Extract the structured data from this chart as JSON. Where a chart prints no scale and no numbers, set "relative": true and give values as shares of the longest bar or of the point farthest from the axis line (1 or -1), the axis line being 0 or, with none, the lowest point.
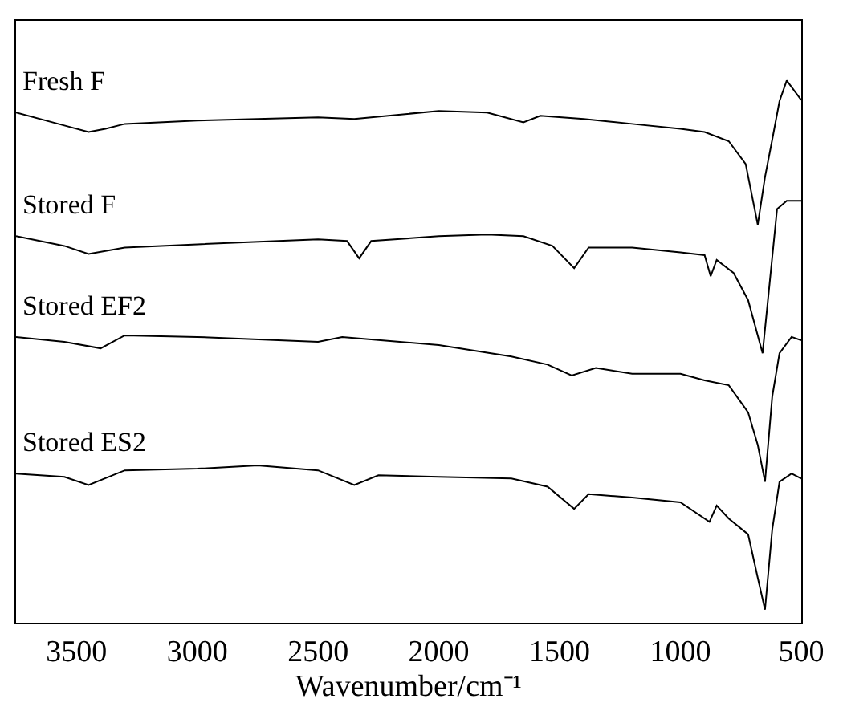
{
  "chart_data": {
    "type": "line",
    "relative": true,
    "xlabel": "Wavenumber/cm⁻¹",
    "xlim": [
      3750,
      500
    ],
    "xticks": [
      3500,
      3000,
      2500,
      2000,
      1500,
      1000,
      500
    ],
    "legend": false,
    "tick_labels": "x",
    "series": [
      {
        "name": "Fresh F",
        "color": "#000000",
        "x": [
          3750,
          3550,
          3450,
          3380,
          3300,
          3000,
          2500,
          2350,
          2000,
          1800,
          1650,
          1580,
          1400,
          1200,
          1000,
          900,
          800,
          730,
          680,
          650,
          620,
          590,
          560,
          500
        ],
        "values": [
          0.941,
          0.917,
          0.905,
          0.911,
          0.92,
          0.926,
          0.932,
          0.929,
          0.944,
          0.941,
          0.923,
          0.935,
          0.929,
          0.92,
          0.911,
          0.905,
          0.888,
          0.846,
          0.734,
          0.822,
          0.891,
          0.962,
          1.0,
          0.964
        ]
      },
      {
        "name": "Stored F",
        "color": "#000000",
        "x": [
          3750,
          3550,
          3450,
          3300,
          3000,
          2500,
          2380,
          2330,
          2280,
          2000,
          1800,
          1650,
          1530,
          1440,
          1380,
          1200,
          1000,
          900,
          875,
          850,
          780,
          720,
          660,
          630,
          600,
          560,
          500
        ],
        "values": [
          0.713,
          0.695,
          0.68,
          0.692,
          0.698,
          0.707,
          0.704,
          0.672,
          0.704,
          0.713,
          0.716,
          0.713,
          0.695,
          0.654,
          0.692,
          0.692,
          0.683,
          0.678,
          0.639,
          0.669,
          0.645,
          0.595,
          0.497,
          0.63,
          0.763,
          0.778,
          0.778
        ]
      },
      {
        "name": "Stored EF2",
        "color": "#000000",
        "x": [
          3750,
          3550,
          3400,
          3300,
          3000,
          2500,
          2400,
          2000,
          1700,
          1550,
          1450,
          1350,
          1200,
          1000,
          900,
          800,
          720,
          680,
          650,
          620,
          590,
          540,
          500
        ],
        "values": [
          0.527,
          0.518,
          0.506,
          0.53,
          0.527,
          0.518,
          0.527,
          0.512,
          0.491,
          0.476,
          0.456,
          0.47,
          0.459,
          0.459,
          0.447,
          0.438,
          0.388,
          0.328,
          0.26,
          0.417,
          0.497,
          0.527,
          0.521
        ]
      },
      {
        "name": "Stored ES2",
        "color": "#000000",
        "x": [
          3750,
          3550,
          3450,
          3300,
          3000,
          2750,
          2500,
          2350,
          2250,
          2000,
          1700,
          1550,
          1440,
          1380,
          1200,
          1000,
          880,
          850,
          800,
          720,
          680,
          650,
          620,
          590,
          540,
          500
        ],
        "values": [
          0.275,
          0.269,
          0.254,
          0.281,
          0.284,
          0.29,
          0.281,
          0.254,
          0.272,
          0.269,
          0.266,
          0.251,
          0.21,
          0.237,
          0.231,
          0.222,
          0.186,
          0.216,
          0.192,
          0.163,
          0.083,
          0.024,
          0.172,
          0.26,
          0.275,
          0.266
        ]
      }
    ]
  }
}
